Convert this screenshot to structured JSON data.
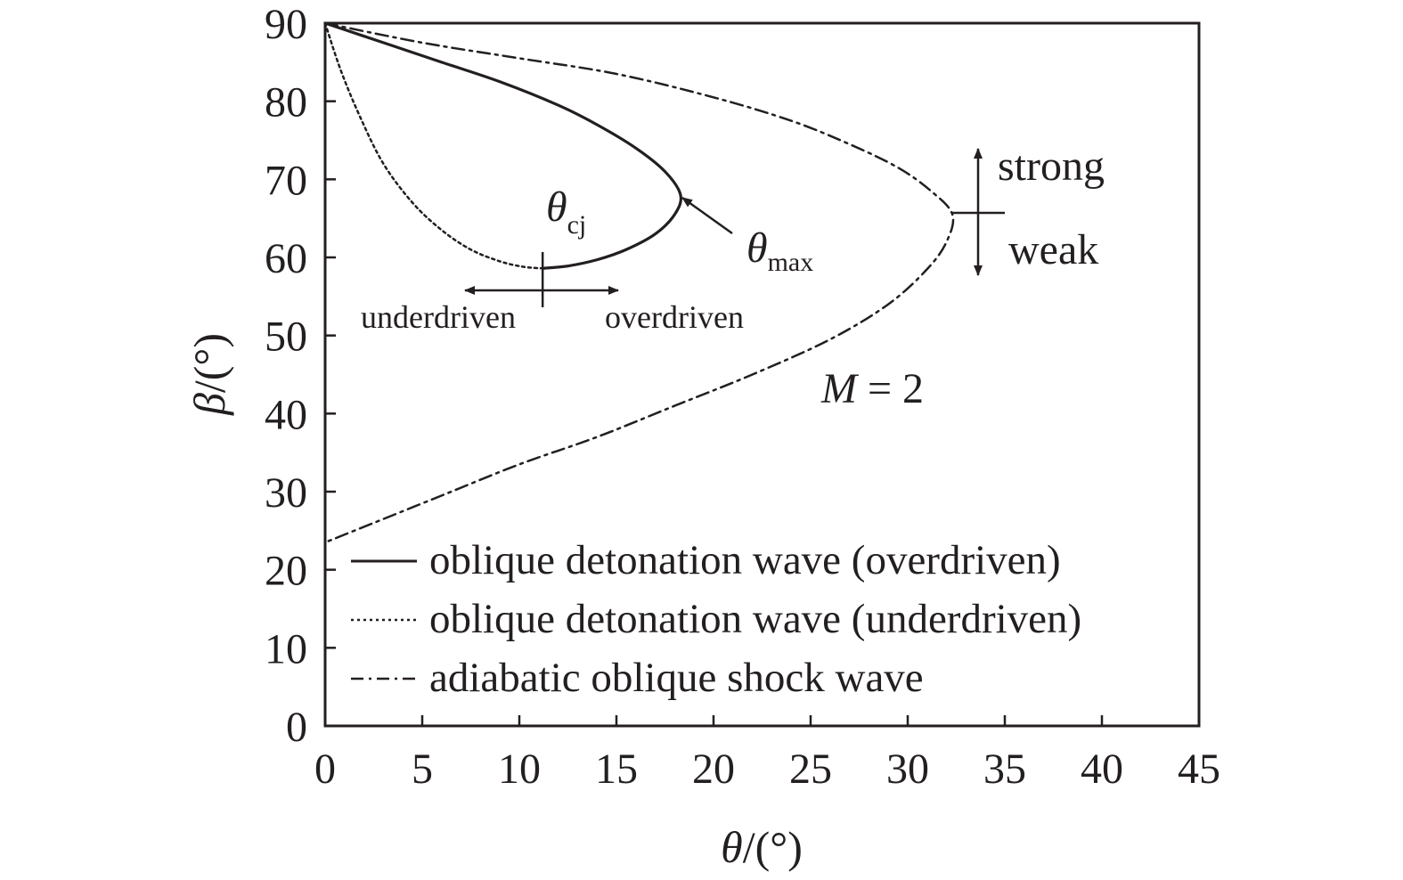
{
  "chart_data": {
    "type": "line",
    "xlabel_symbol": "θ",
    "xlabel_unit": "/(°)",
    "ylabel_symbol": "β",
    "ylabel_unit": "/(°)",
    "xlim": [
      0,
      45
    ],
    "ylim": [
      0,
      90
    ],
    "xticks": [
      0,
      5,
      10,
      15,
      20,
      25,
      30,
      35,
      40,
      45
    ],
    "yticks": [
      0,
      10,
      20,
      30,
      40,
      50,
      60,
      70,
      80,
      90
    ],
    "grid": false,
    "legend_position": "bottom-left (inside plot)",
    "series": [
      {
        "name": "oblique detonation wave (overdriven)",
        "style": "solid",
        "x": [
          0,
          3,
          6,
          9,
          12,
          14,
          16,
          17.5,
          18.3,
          18.0,
          17.0,
          15.5,
          14.0,
          12.5,
          11.2
        ],
        "y": [
          90,
          87.5,
          85,
          82.5,
          79.5,
          77,
          74,
          71,
          68,
          65.5,
          63,
          61,
          59.7,
          58.9,
          58.6
        ]
      },
      {
        "name": "oblique detonation wave (underdriven)",
        "style": "dotted",
        "x": [
          0,
          0.8,
          1.8,
          3,
          4.5,
          6,
          7.5,
          9,
          10.2,
          11.2
        ],
        "y": [
          90,
          84,
          78,
          72,
          67,
          63.5,
          61,
          59.5,
          58.8,
          58.6
        ]
      },
      {
        "name": "adiabatic oblique shock wave",
        "style": "dash-dot",
        "x": [
          0,
          5,
          10,
          15,
          20,
          24,
          27,
          29.5,
          31.2,
          32.3,
          32.0,
          31.0,
          29.0,
          26.0,
          22.0,
          18.0,
          14.0,
          10.0,
          6.0,
          2.0,
          0
        ],
        "y": [
          90,
          87.5,
          85.5,
          83.5,
          80.5,
          77.5,
          74.5,
          71.5,
          68.5,
          65.5,
          62,
          58.5,
          54,
          49.5,
          45,
          41,
          37,
          33.5,
          29.5,
          25.5,
          23.5
        ]
      }
    ],
    "annotations": {
      "theta_cj": {
        "symbol": "θ",
        "subscript": "cj",
        "x": 11.2,
        "y": 58.6
      },
      "theta_max": {
        "symbol": "θ",
        "subscript": "max",
        "x": 18.3,
        "y": 68
      },
      "underdriven_label": "underdriven",
      "overdriven_label": "overdriven",
      "strong_label": "strong",
      "weak_label": "weak",
      "mach_label_symbol": "M",
      "mach_label_value": " = 2"
    }
  }
}
